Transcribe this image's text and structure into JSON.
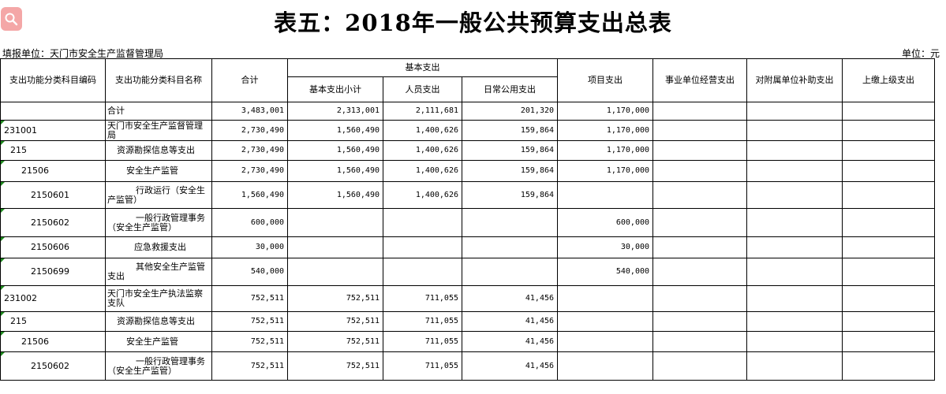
{
  "title": "表五：2018年一般公共预算支出总表",
  "unit_left": "填报单位：天门市安全生产监督管理局",
  "unit_right": "单位：元",
  "header": {
    "code": "支出功能分类科目编码",
    "name": "支出功能分类科目名称",
    "total": "合计",
    "basic": "基本支出",
    "basic_subtotal": "基本支出小计",
    "personnel": "人员支出",
    "daily": "日常公用支出",
    "project": "项目支出",
    "business": "事业单位经营支出",
    "subsidy": "对附属单位补助支出",
    "upper": "上缴上级支出"
  },
  "rows": [
    {
      "code": "",
      "name": "合计",
      "total": "3,483,001",
      "basic_subtotal": "2,313,001",
      "personnel": "2,111,681",
      "daily": "201,320",
      "project": "1,170,000",
      "business": "",
      "subsidy": "",
      "upper": ""
    },
    {
      "code": "231001",
      "name": "天门市安全生产监督管理局",
      "total": "2,730,490",
      "basic_subtotal": "1,560,490",
      "personnel": "1,400,626",
      "daily": "159,864",
      "project": "1,170,000",
      "business": "",
      "subsidy": "",
      "upper": ""
    },
    {
      "code": "215",
      "name": "资源勘探信息等支出",
      "total": "2,730,490",
      "basic_subtotal": "1,560,490",
      "personnel": "1,400,626",
      "daily": "159,864",
      "project": "1,170,000",
      "business": "",
      "subsidy": "",
      "upper": ""
    },
    {
      "code": "21506",
      "name": "安全生产监管",
      "total": "2,730,490",
      "basic_subtotal": "1,560,490",
      "personnel": "1,400,626",
      "daily": "159,864",
      "project": "1,170,000",
      "business": "",
      "subsidy": "",
      "upper": ""
    },
    {
      "code": "2150601",
      "name": "行政运行（安全生产监管）",
      "total": "1,560,490",
      "basic_subtotal": "1,560,490",
      "personnel": "1,400,626",
      "daily": "159,864",
      "project": "",
      "business": "",
      "subsidy": "",
      "upper": ""
    },
    {
      "code": "2150602",
      "name": "一般行政管理事务（安全生产监管）",
      "total": "600,000",
      "basic_subtotal": "",
      "personnel": "",
      "daily": "",
      "project": "600,000",
      "business": "",
      "subsidy": "",
      "upper": ""
    },
    {
      "code": "2150606",
      "name": "应急救援支出",
      "total": "30,000",
      "basic_subtotal": "",
      "personnel": "",
      "daily": "",
      "project": "30,000",
      "business": "",
      "subsidy": "",
      "upper": ""
    },
    {
      "code": "2150699",
      "name": "其他安全生产监管支出",
      "total": "540,000",
      "basic_subtotal": "",
      "personnel": "",
      "daily": "",
      "project": "540,000",
      "business": "",
      "subsidy": "",
      "upper": ""
    },
    {
      "code": "231002",
      "name": "天门市安全生产执法监察支队",
      "total": "752,511",
      "basic_subtotal": "752,511",
      "personnel": "711,055",
      "daily": "41,456",
      "project": "",
      "business": "",
      "subsidy": "",
      "upper": ""
    },
    {
      "code": "215",
      "name": "资源勘探信息等支出",
      "total": "752,511",
      "basic_subtotal": "752,511",
      "personnel": "711,055",
      "daily": "41,456",
      "project": "",
      "business": "",
      "subsidy": "",
      "upper": ""
    },
    {
      "code": "21506",
      "name": "安全生产监管",
      "total": "752,511",
      "basic_subtotal": "752,511",
      "personnel": "711,055",
      "daily": "41,456",
      "project": "",
      "business": "",
      "subsidy": "",
      "upper": ""
    },
    {
      "code": "2150602",
      "name": "一般行政管理事务（安全生产监管）",
      "total": "752,511",
      "basic_subtotal": "752,511",
      "personnel": "711,055",
      "daily": "41,456",
      "project": "",
      "business": "",
      "subsidy": "",
      "upper": ""
    }
  ]
}
